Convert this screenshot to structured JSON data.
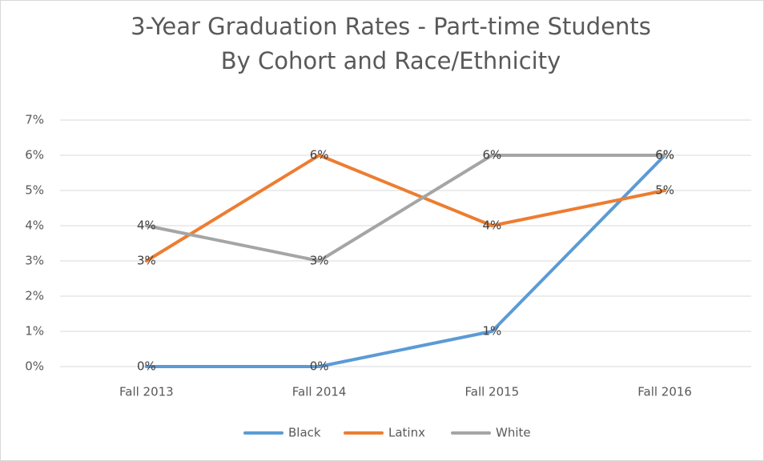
{
  "chart_data": {
    "type": "line",
    "title": "3-Year Graduation Rates - Part-time Students",
    "subtitle": "By Cohort and Race/Ethnicity",
    "categories": [
      "Fall 2013",
      "Fall 2014",
      "Fall 2015",
      "Fall 2016"
    ],
    "series": [
      {
        "name": "Black",
        "color": "#5b9bd5",
        "values": [
          0,
          0,
          1,
          6
        ],
        "value_labels": [
          "0%",
          "0%",
          "1%",
          "6%"
        ]
      },
      {
        "name": "Latinx",
        "color": "#ed7d31",
        "values": [
          3,
          6,
          4,
          5
        ],
        "value_labels": [
          "3%",
          "6%",
          "4%",
          "5%"
        ]
      },
      {
        "name": "White",
        "color": "#a5a5a5",
        "values": [
          4,
          3,
          6,
          6
        ],
        "value_labels": [
          "4%",
          "3%",
          "6%",
          "6%"
        ]
      }
    ],
    "ylim": [
      0,
      7
    ],
    "yticks": [
      {
        "value": 0,
        "label": "0%"
      },
      {
        "value": 1,
        "label": "1%"
      },
      {
        "value": 2,
        "label": "2%"
      },
      {
        "value": 3,
        "label": "3%"
      },
      {
        "value": 4,
        "label": "4%"
      },
      {
        "value": 5,
        "label": "5%"
      },
      {
        "value": 6,
        "label": "6%"
      },
      {
        "value": 7,
        "label": "7%"
      }
    ],
    "grid": true,
    "legend": "bottom"
  }
}
